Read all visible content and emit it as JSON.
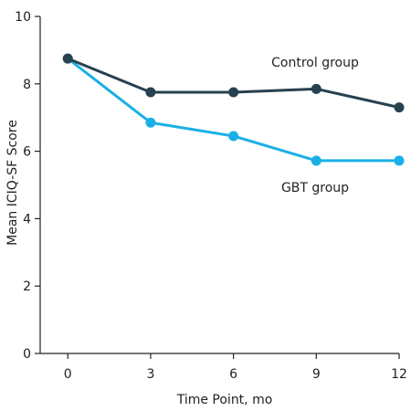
{
  "chart_data": {
    "type": "line",
    "title": "",
    "xlabel": "Time Point, mo",
    "ylabel": "Mean ICIQ-SF Score",
    "x": [
      0,
      3,
      6,
      9,
      12
    ],
    "xlim": [
      -1,
      12
    ],
    "ylim": [
      0,
      10
    ],
    "xticks": [
      0,
      3,
      6,
      9,
      12
    ],
    "yticks": [
      0,
      2,
      4,
      6,
      8,
      10
    ],
    "grid": false,
    "legend": "none",
    "series": [
      {
        "name": "Control group",
        "color": "#27414f",
        "values": [
          8.75,
          7.75,
          7.75,
          7.85,
          7.3
        ]
      },
      {
        "name": "GBT group",
        "color": "#1ab0e6",
        "values": [
          8.75,
          6.85,
          6.45,
          5.72,
          5.72
        ]
      }
    ]
  }
}
